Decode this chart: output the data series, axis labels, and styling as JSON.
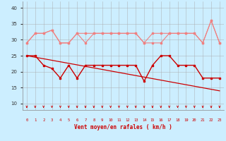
{
  "xlabel": "Vent moyen/en rafales ( km/h )",
  "bg_color": "#cceeff",
  "grid_color": "#aaaaaa",
  "x": [
    0,
    1,
    2,
    3,
    4,
    5,
    6,
    7,
    8,
    9,
    10,
    11,
    12,
    13,
    14,
    15,
    16,
    17,
    18,
    19,
    20,
    21,
    22,
    23
  ],
  "line1": [
    29,
    32,
    32,
    33,
    29,
    29,
    32,
    32,
    32,
    32,
    32,
    32,
    32,
    32,
    29,
    32,
    32,
    32,
    32,
    32,
    32,
    29,
    36,
    29
  ],
  "line2": [
    29,
    32,
    32,
    33,
    29,
    29,
    32,
    29,
    32,
    32,
    32,
    32,
    32,
    32,
    29,
    29,
    29,
    32,
    32,
    32,
    32,
    29,
    36,
    29
  ],
  "line3": [
    25,
    25,
    22,
    21,
    18,
    22,
    18,
    22,
    22,
    22,
    22,
    22,
    22,
    22,
    17,
    22,
    25,
    25,
    22,
    22,
    22,
    18,
    18,
    18
  ],
  "line4_x": [
    0,
    23
  ],
  "line4_y": [
    25,
    14
  ],
  "color_light": "#f08080",
  "color_dark": "#cc0000",
  "xlim": [
    -0.5,
    23.5
  ],
  "ylim": [
    8,
    42
  ],
  "yticks": [
    10,
    15,
    20,
    25,
    30,
    35,
    40
  ],
  "arrow_angles": [
    45,
    45,
    45,
    45,
    45,
    45,
    45,
    45,
    45,
    45,
    45,
    45,
    45,
    45,
    45,
    45,
    45,
    45,
    45,
    45,
    60,
    60,
    60,
    60
  ]
}
